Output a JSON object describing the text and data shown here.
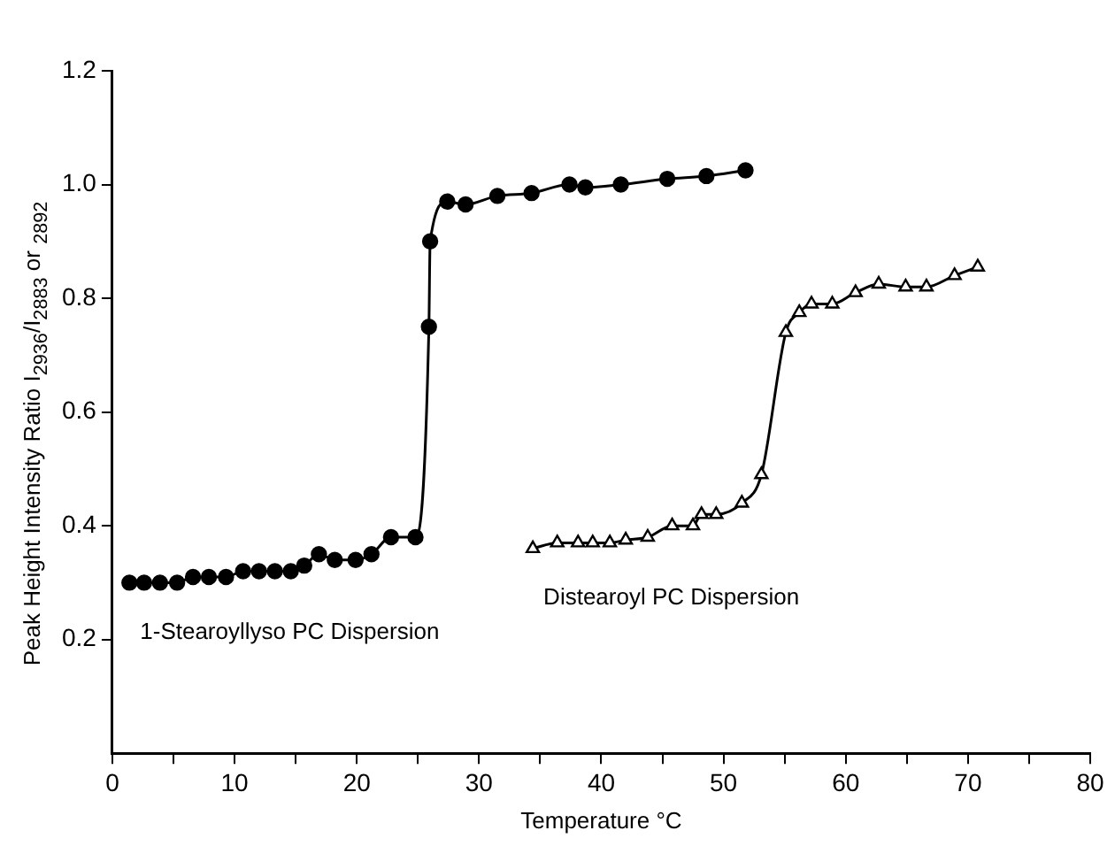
{
  "chart_data": {
    "type": "line",
    "xlabel": "Temperature °C",
    "ylabel": "Peak Height Intensity Ratio I$_{2936}$/I$_{2883}$ or $_{2892}$",
    "xlim": [
      0,
      80
    ],
    "xticks": [
      0,
      {
        "value": 5,
        "label": null
      },
      10,
      {
        "value": 15,
        "label": null
      },
      20,
      {
        "value": 25,
        "label": null
      },
      30,
      {
        "value": 35,
        "label": null
      },
      40,
      {
        "value": 45,
        "label": null
      },
      50,
      {
        "value": 55,
        "label": null
      },
      60,
      {
        "value": 65,
        "label": null
      },
      70,
      {
        "value": 75,
        "label": null
      },
      80
    ],
    "ylim": [
      0,
      1.2
    ],
    "yticks": [
      0.2,
      0.4,
      0.6,
      0.8,
      {
        "value": 1,
        "label": "1.0"
      },
      1.2
    ],
    "grid": false,
    "legend": false,
    "line_style": "solid",
    "series": [
      {
        "name": "1-Stearoyllyso PC Dispersion",
        "color": "#000000",
        "marker": "circle",
        "x": [
          1.4,
          2.6,
          3.9,
          5.3,
          6.6,
          7.9,
          9.3,
          10.7,
          12,
          13.3,
          14.6,
          15.7,
          16.9,
          18.2,
          19.9,
          21.2,
          22.8,
          24.8,
          25.9,
          26.0,
          27.4,
          28.9,
          31.5,
          34.3,
          37.4,
          38.7,
          41.6,
          45.4,
          48.6,
          51.8
        ],
        "values": [
          0.3,
          0.3,
          0.3,
          0.3,
          0.31,
          0.31,
          0.31,
          0.32,
          0.32,
          0.32,
          0.32,
          0.33,
          0.35,
          0.34,
          0.34,
          0.35,
          0.38,
          0.38,
          0.75,
          0.9,
          0.97,
          0.965,
          0.98,
          0.985,
          1.0,
          0.995,
          1.0,
          1.01,
          1.015,
          1.025
        ]
      },
      {
        "name": "Distearoyl PC Dispersion",
        "color": "#000000",
        "marker": "triangle",
        "x": [
          34.4,
          36.4,
          38.1,
          39.3,
          40.7,
          42.0,
          43.8,
          45.8,
          47.5,
          48.2,
          49.4,
          51.5,
          53.1,
          55.1,
          56.2,
          57.2,
          58.9,
          60.8,
          62.7,
          64.9,
          66.6,
          68.9,
          70.8
        ],
        "values": [
          0.36,
          0.37,
          0.37,
          0.37,
          0.37,
          0.375,
          0.38,
          0.4,
          0.4,
          0.42,
          0.42,
          0.44,
          0.49,
          0.74,
          0.775,
          0.79,
          0.79,
          0.81,
          0.825,
          0.82,
          0.82,
          0.84,
          0.855
        ]
      }
    ]
  }
}
